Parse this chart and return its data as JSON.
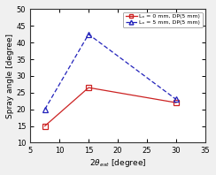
{
  "x": [
    7.5,
    15,
    30
  ],
  "series1_y": [
    15,
    26.5,
    22
  ],
  "series2_y": [
    20,
    42.5,
    23
  ],
  "series1_color": "#cc2222",
  "series2_color": "#2222bb",
  "series1_label": "Lₒ = 0 mm, DP(5 mm)",
  "series2_label": "Lₒ = 5 mm, DP(5 mm)",
  "xlabel": "2θ_ext [degree]",
  "ylabel": "Spray angle [degree]",
  "xlim": [
    5,
    35
  ],
  "ylim": [
    10,
    50
  ],
  "xticks": [
    5,
    10,
    15,
    20,
    25,
    30,
    35
  ],
  "yticks": [
    10,
    15,
    20,
    25,
    30,
    35,
    40,
    45,
    50
  ],
  "bg_color": "#f0f0f0",
  "plot_bg_color": "#ffffff"
}
